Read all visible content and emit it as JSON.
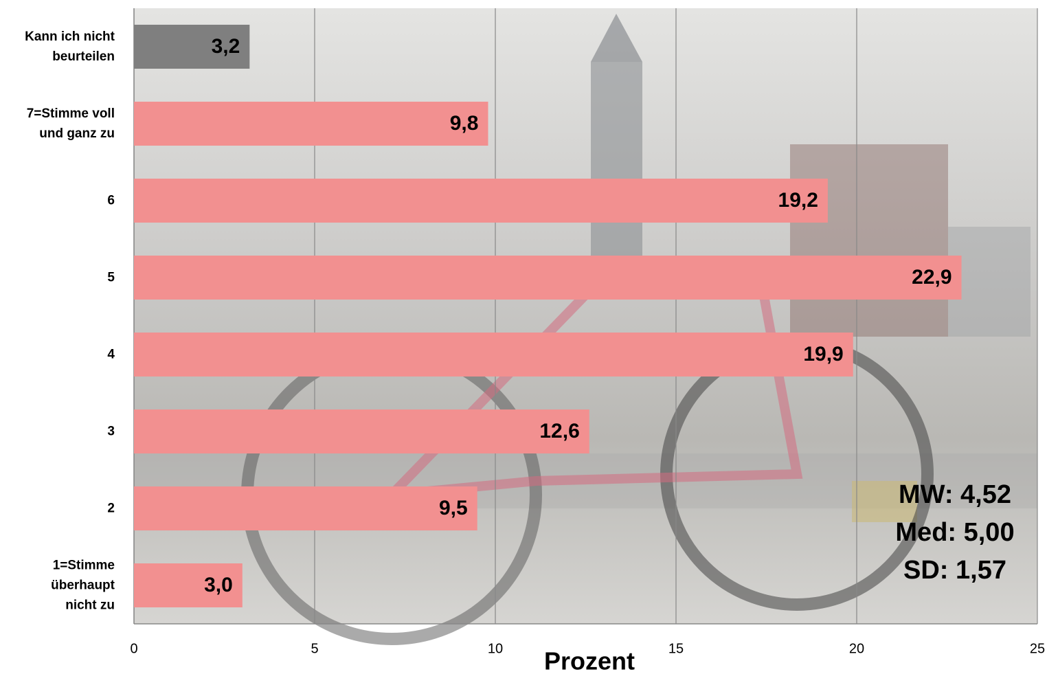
{
  "chart_data": {
    "type": "bar",
    "orientation": "horizontal",
    "categories": [
      "Kann ich nicht\nbeurteilen",
      "7=Stimme voll\nund ganz zu",
      "6",
      "5",
      "4",
      "3",
      "2",
      "1=Stimme\nüberhaupt\nnicht zu"
    ],
    "values": [
      3.2,
      9.8,
      19.2,
      22.9,
      19.9,
      12.6,
      9.5,
      3.0
    ],
    "value_labels": [
      "3,2",
      "9,8",
      "19,2",
      "22,9",
      "19,9",
      "12,6",
      "9,5",
      "3,0"
    ],
    "colors": [
      "#7f7f7f",
      "#f29090",
      "#f29090",
      "#f29090",
      "#f29090",
      "#f29090",
      "#f29090",
      "#f29090"
    ],
    "xlabel": "Prozent",
    "xlim": [
      0,
      25
    ],
    "xticks": [
      0,
      5,
      10,
      15,
      20,
      25
    ],
    "grid": true,
    "annotations": [
      "MW: 4,52",
      "Med: 5,00",
      "SD: 1,57"
    ]
  }
}
